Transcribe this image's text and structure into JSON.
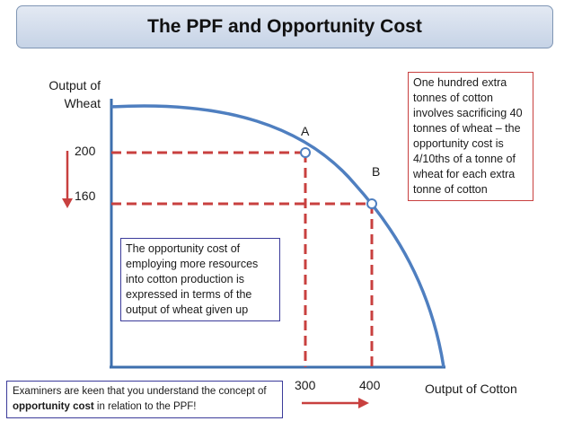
{
  "title": "The PPF and Opportunity Cost",
  "axes": {
    "y_label_line1": "Output of",
    "y_label_line2": "Wheat",
    "x_label": "Output of Cotton",
    "y_ticks": [
      "200",
      "160"
    ],
    "x_ticks": [
      "300",
      "400"
    ]
  },
  "points": {
    "a_label": "A",
    "b_label": "B"
  },
  "notes": {
    "right_box": "One hundred extra tonnes of cotton involves sacrificing 40 tonnes of wheat – the opportunity cost is 4/10ths of a tonne of wheat for each extra tonne of cotton",
    "middle_box": "The opportunity cost of employing more resources into cotton production is expressed in terms of the output of wheat given up",
    "bottom_box_part1": "Examiners are keen that you understand the concept of ",
    "bottom_box_bold": "opportunity cost",
    "bottom_box_part2": " in relation to the PPF!"
  },
  "colors": {
    "axis": "#3d6fae",
    "curve": "#4f7fc0",
    "dashed": "#c8403f",
    "arrow": "#c8403f",
    "point_fill": "#ffffff",
    "point_stroke": "#4f7fc0"
  }
}
